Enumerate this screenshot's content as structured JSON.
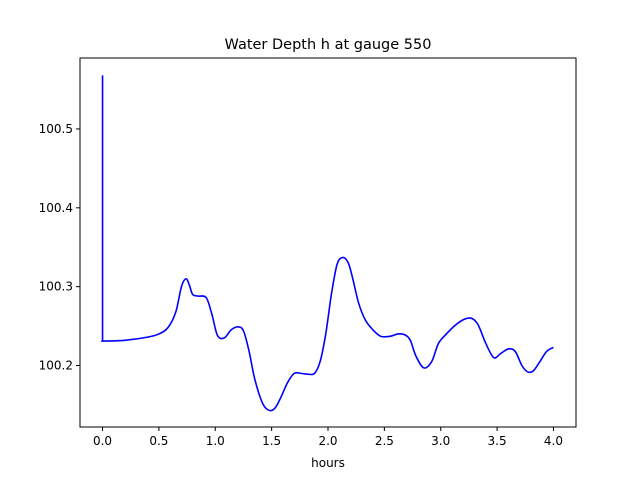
{
  "chart_data": {
    "type": "line",
    "title": "Water Depth h at gauge 550",
    "xlabel": "hours",
    "ylabel": "",
    "xlim": [
      -0.2,
      4.2
    ],
    "ylim": [
      100.122,
      100.59
    ],
    "xticks": [
      0.0,
      0.5,
      1.0,
      1.5,
      2.0,
      2.5,
      3.0,
      3.5,
      4.0
    ],
    "xtick_labels": [
      "0.0",
      "0.5",
      "1.0",
      "1.5",
      "2.0",
      "2.5",
      "3.0",
      "3.5",
      "4.0"
    ],
    "yticks": [
      100.2,
      100.3,
      100.4,
      100.5
    ],
    "ytick_labels": [
      "100.2",
      "100.3",
      "100.4",
      "100.5"
    ],
    "grid": false,
    "series": [
      {
        "color": "#0000ff",
        "x": [
          0.0,
          0.0,
          0.01,
          0.2,
          0.4,
          0.5,
          0.58,
          0.65,
          0.7,
          0.74,
          0.77,
          0.8,
          0.85,
          0.92,
          0.97,
          1.02,
          1.08,
          1.14,
          1.2,
          1.25,
          1.3,
          1.35,
          1.42,
          1.48,
          1.53,
          1.58,
          1.64,
          1.7,
          1.76,
          1.82,
          1.88,
          1.93,
          1.98,
          2.03,
          2.08,
          2.13,
          2.18,
          2.22,
          2.27,
          2.33,
          2.4,
          2.47,
          2.55,
          2.62,
          2.68,
          2.73,
          2.78,
          2.85,
          2.92,
          2.98,
          3.05,
          3.12,
          3.2,
          3.27,
          3.33,
          3.4,
          3.47,
          3.53,
          3.6,
          3.66,
          3.72,
          3.77,
          3.82,
          3.88,
          3.94,
          4.0
        ],
        "y": [
          100.568,
          100.231,
          100.231,
          100.232,
          100.236,
          100.24,
          100.248,
          100.268,
          100.3,
          100.31,
          100.302,
          100.29,
          100.288,
          100.286,
          100.265,
          100.238,
          100.235,
          100.245,
          100.249,
          100.244,
          100.218,
          100.183,
          100.152,
          100.143,
          100.146,
          100.159,
          100.178,
          100.19,
          100.19,
          100.189,
          100.19,
          100.205,
          100.24,
          100.29,
          100.328,
          100.337,
          100.33,
          100.31,
          100.28,
          100.258,
          100.245,
          100.237,
          100.237,
          100.24,
          100.239,
          100.232,
          100.212,
          100.197,
          100.205,
          100.228,
          100.24,
          100.25,
          100.258,
          100.26,
          100.252,
          100.228,
          100.21,
          100.215,
          100.221,
          100.218,
          100.2,
          100.192,
          100.193,
          100.205,
          100.218,
          100.223
        ]
      }
    ]
  }
}
